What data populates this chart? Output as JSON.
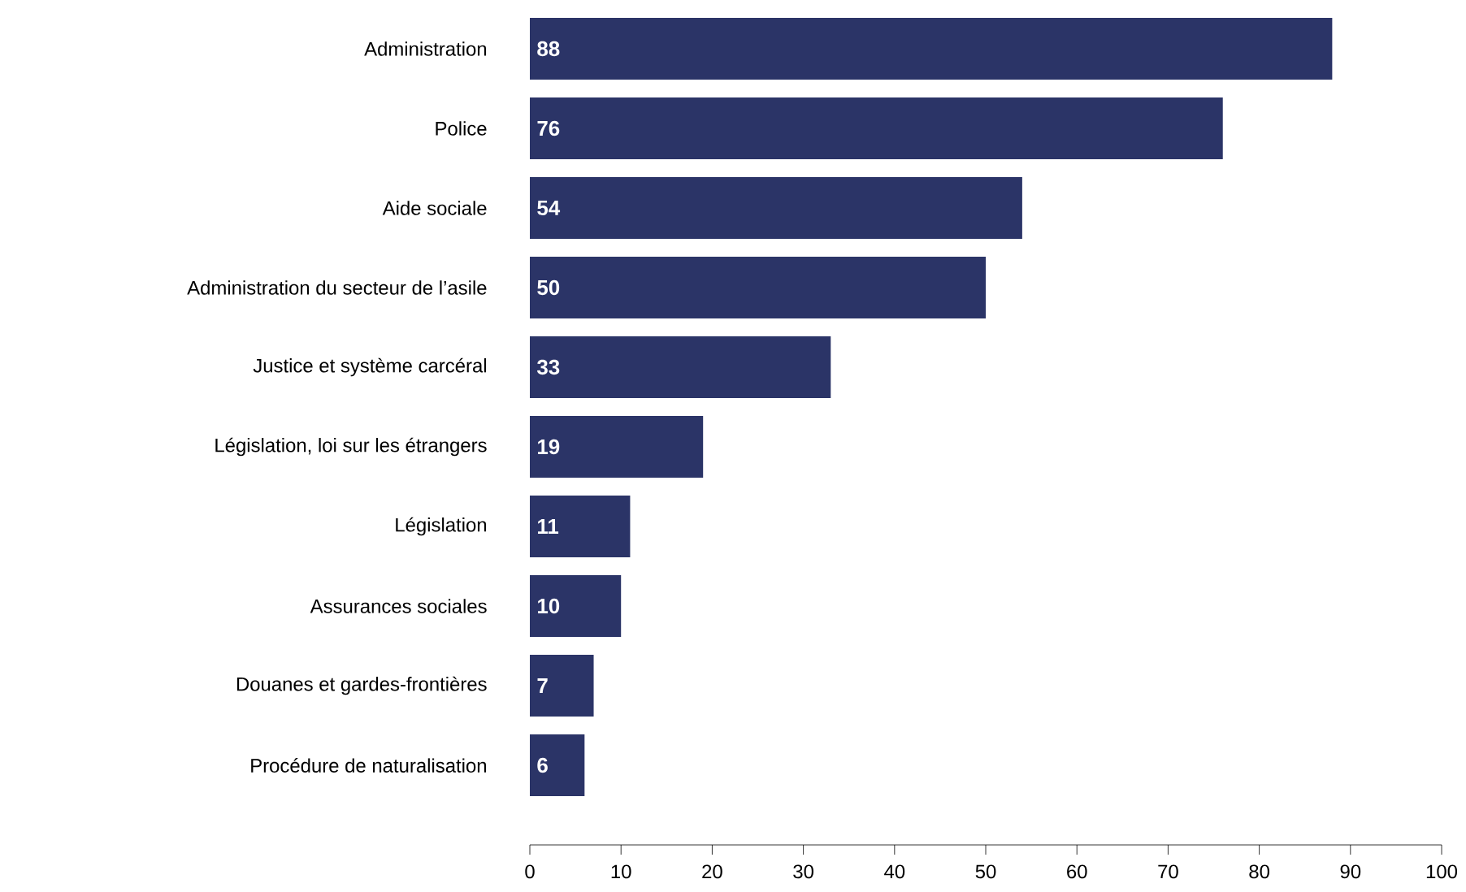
{
  "chart_data": {
    "type": "bar",
    "orientation": "horizontal",
    "categories": [
      "Administration",
      "Police",
      "Aide sociale",
      "Administration du secteur de l’asile",
      "Justice et système carcéral",
      "Législation, loi sur les étrangers",
      "Législation",
      "Assurances sociales",
      "Douanes et gardes-frontières",
      "Procédure de naturalisation"
    ],
    "values": [
      88,
      76,
      54,
      50,
      33,
      19,
      11,
      10,
      7,
      6
    ],
    "color": "#2b3467",
    "xlim": [
      0,
      100
    ],
    "xticks": [
      0,
      10,
      20,
      30,
      40,
      50,
      60,
      70,
      80,
      90,
      100
    ],
    "data_labels": true
  }
}
